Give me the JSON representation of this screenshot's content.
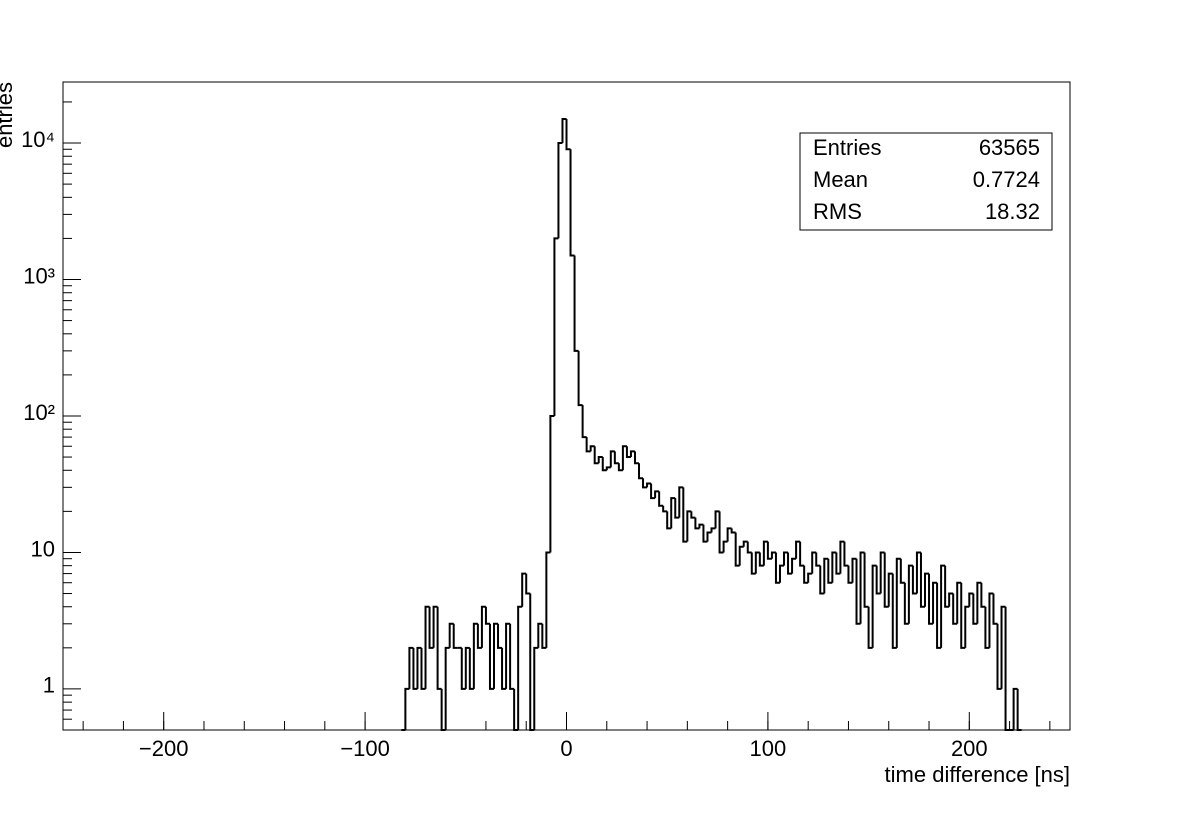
{
  "chart_data": {
    "type": "histogram",
    "x_label": "time difference [ns]",
    "y_label": "entries",
    "bins": [
      -82,
      -80,
      -78,
      -76,
      -74,
      -72,
      -70,
      -68,
      -66,
      -64,
      -62,
      -60,
      -58,
      -56,
      -54,
      -52,
      -50,
      -48,
      -46,
      -44,
      -42,
      -40,
      -38,
      -36,
      -34,
      -32,
      -30,
      -28,
      -26,
      -24,
      -22,
      -20,
      -18,
      -16,
      -14,
      -12,
      -10,
      -8,
      -6,
      -4,
      -2,
      0,
      2,
      4,
      6,
      8,
      10,
      12,
      14,
      16,
      18,
      20,
      22,
      24,
      26,
      28,
      30,
      32,
      34,
      36,
      38,
      40,
      42,
      44,
      46,
      48,
      50,
      52,
      54,
      56,
      58,
      60,
      62,
      64,
      66,
      68,
      70,
      72,
      74,
      76,
      78,
      80,
      82,
      84,
      86,
      88,
      90,
      92,
      94,
      96,
      98,
      100,
      102,
      104,
      106,
      108,
      110,
      112,
      114,
      116,
      118,
      120,
      122,
      124,
      126,
      128,
      130,
      132,
      134,
      136,
      138,
      140,
      142,
      144,
      146,
      148,
      150,
      152,
      154,
      156,
      158,
      160,
      162,
      164,
      166,
      168,
      170,
      172,
      174,
      176,
      178,
      180,
      182,
      184,
      186,
      188,
      190,
      192,
      194,
      196,
      198,
      200,
      202,
      204,
      206,
      208,
      210,
      212,
      214,
      216,
      218,
      220,
      222,
      224,
      226
    ],
    "values": [
      0,
      1,
      2,
      1,
      2,
      1,
      4,
      2,
      4,
      1,
      0,
      2,
      3,
      2,
      2,
      1,
      2,
      1,
      3,
      2,
      4,
      3,
      1,
      3,
      2,
      1,
      3,
      1,
      0,
      4,
      7,
      5,
      0,
      2,
      3,
      2,
      10,
      100,
      2000,
      10000,
      15000,
      9000,
      1500,
      300,
      120,
      70,
      55,
      60,
      45,
      50,
      40,
      42,
      55,
      45,
      40,
      60,
      50,
      55,
      45,
      35,
      30,
      32,
      25,
      28,
      22,
      20,
      15,
      25,
      18,
      30,
      12,
      20,
      18,
      15,
      16,
      12,
      14,
      15,
      20,
      10,
      12,
      15,
      14,
      8,
      11,
      12,
      10,
      7,
      10,
      8,
      12,
      9,
      10,
      6,
      8,
      10,
      7,
      9,
      12,
      8,
      6,
      7,
      10,
      8,
      5,
      9,
      6,
      10,
      7,
      12,
      8,
      6,
      9,
      3,
      10,
      4,
      2,
      8,
      5,
      10,
      4,
      7,
      2,
      9,
      6,
      3,
      8,
      5,
      10,
      4,
      7,
      3,
      6,
      2,
      8,
      4,
      5,
      3,
      6,
      2,
      4,
      5,
      3,
      6,
      4,
      2,
      5,
      3,
      1,
      4,
      0,
      0,
      1,
      0
    ],
    "color": "#000000",
    "xlim": [
      -250,
      250
    ],
    "xticks": [
      {
        "value": -200,
        "label": "−200"
      },
      {
        "value": -100,
        "label": "−100"
      },
      0,
      100,
      200
    ],
    "ylim": [
      0.5,
      28000
    ],
    "log_y": true,
    "yticks": [
      1,
      10,
      {
        "value": 100,
        "label": "10²"
      },
      {
        "value": 1000,
        "label": "10³"
      },
      {
        "value": 10000,
        "label": "10⁴"
      }
    ],
    "stats": [
      {
        "label": "Entries",
        "value": 63565
      },
      {
        "label": "Mean",
        "value": 0.7724
      },
      {
        "label": "RMS",
        "value": 18.32
      }
    ]
  }
}
